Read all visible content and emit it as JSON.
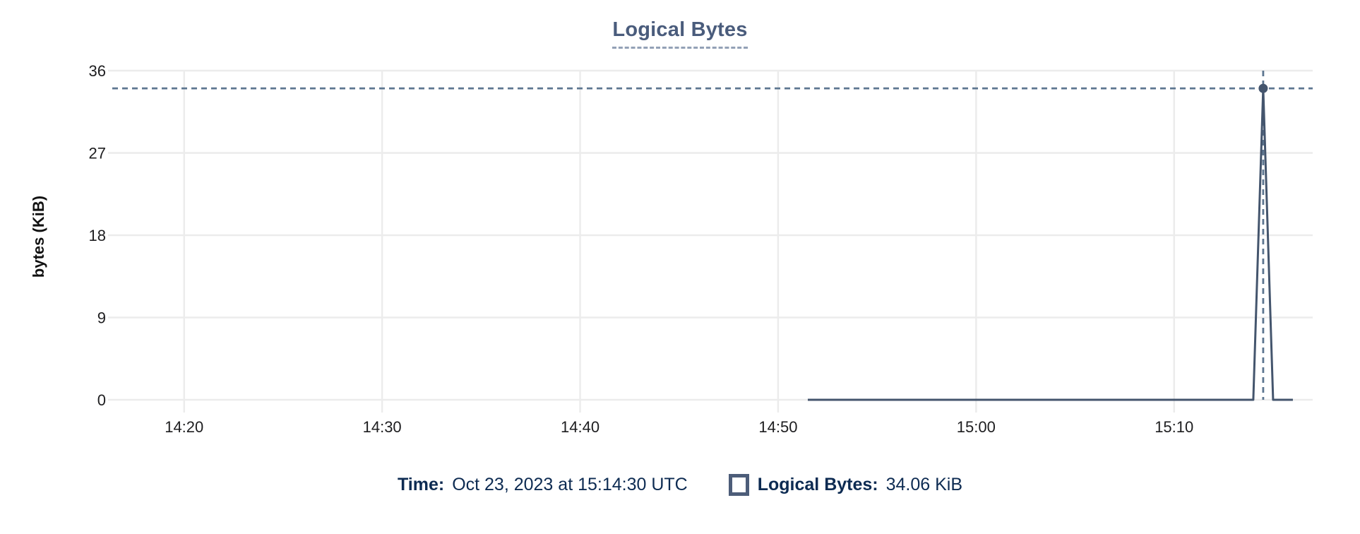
{
  "title": {
    "text": "Logical Bytes"
  },
  "tooltip_readout": {
    "time_label": "Time:",
    "time_value": "Oct 23, 2023 at 15:14:30 UTC",
    "series_label": "Logical Bytes:",
    "series_value": "34.06 KiB"
  },
  "colors": {
    "background": "#ffffff",
    "line": "#44556d",
    "marker": "#44556d",
    "crosshair": "#5d7690",
    "grid": "#ececec",
    "axis_text": "#1d1d1f",
    "axis_title_text": "#111111",
    "title_text": "#4a5c7c",
    "title_underline": "#93a1b6",
    "legend_text": "#0d2b52",
    "legend_swatch_border": "#4d5d79"
  },
  "chart_data": {
    "type": "line",
    "title": "Logical Bytes",
    "xlabel": "",
    "ylabel": "bytes (KiB)",
    "ylim": [
      0,
      36
    ],
    "y_ticks": [
      0,
      9,
      18,
      27,
      36
    ],
    "x_ticks": [
      {
        "minutes_after_1400": 20,
        "label": "14:20"
      },
      {
        "minutes_after_1400": 30,
        "label": "14:30"
      },
      {
        "minutes_after_1400": 40,
        "label": "14:40"
      },
      {
        "minutes_after_1400": 50,
        "label": "14:50"
      },
      {
        "minutes_after_1400": 60,
        "label": "15:00"
      },
      {
        "minutes_after_1400": 70,
        "label": "15:10"
      }
    ],
    "x_domain_minutes_after_1400": [
      16.3,
      77.0
    ],
    "grid": true,
    "legend_position": "bottom",
    "series": [
      {
        "name": "Logical Bytes",
        "unit": "KiB",
        "points": [
          {
            "minutes_after_1400": 51.5,
            "time": "14:51:30",
            "value_kib": 0
          },
          {
            "minutes_after_1400": 74.0,
            "time": "15:14:00",
            "value_kib": 0
          },
          {
            "minutes_after_1400": 74.5,
            "time": "15:14:30",
            "value_kib": 34.06
          },
          {
            "minutes_after_1400": 75.0,
            "time": "15:15:00",
            "value_kib": 0
          },
          {
            "minutes_after_1400": 76.0,
            "time": "15:16:00",
            "value_kib": 0
          }
        ]
      }
    ],
    "hover_point": {
      "minutes_after_1400": 74.5,
      "time": "Oct 23, 2023 at 15:14:30 UTC",
      "value_kib": 34.06
    }
  }
}
